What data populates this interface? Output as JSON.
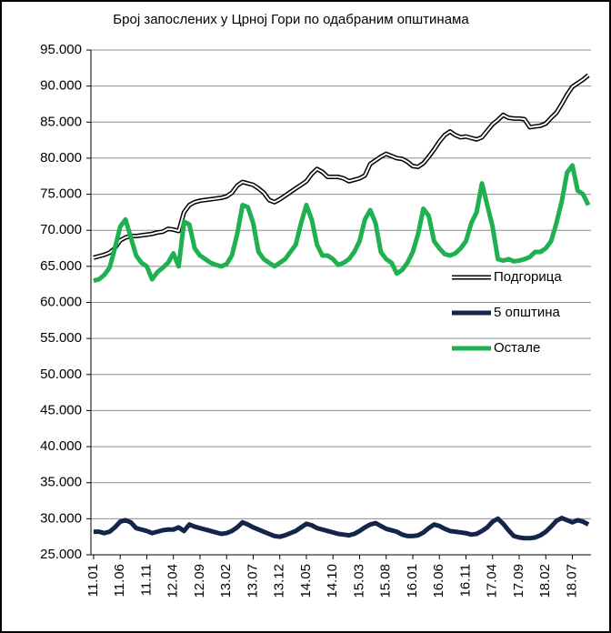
{
  "chart_data": {
    "type": "line",
    "title": "Број запослених у Црној Гори по одабраним општинама",
    "categories": [
      "11.01",
      null,
      null,
      null,
      null,
      "11.06",
      null,
      null,
      null,
      null,
      "11.11",
      null,
      null,
      null,
      null,
      "12.04",
      null,
      null,
      null,
      null,
      "12.09",
      null,
      null,
      null,
      null,
      "13.02",
      null,
      null,
      null,
      null,
      "13.07",
      null,
      null,
      null,
      null,
      "13.12",
      null,
      null,
      null,
      null,
      "14.05",
      null,
      null,
      null,
      null,
      "14.10",
      null,
      null,
      null,
      null,
      "15.03",
      null,
      null,
      null,
      null,
      "15.08",
      null,
      null,
      null,
      null,
      "16.01",
      null,
      null,
      null,
      null,
      "16.06",
      null,
      null,
      null,
      null,
      "16.11",
      null,
      null,
      null,
      null,
      "17.04",
      null,
      null,
      null,
      null,
      "17.09",
      null,
      null,
      null,
      null,
      "18.02",
      null,
      null,
      null,
      null,
      "18.07",
      null,
      null,
      null
    ],
    "series": [
      {
        "name": "Подгорица",
        "color": "#000000",
        "values": [
          66200,
          66400,
          66600,
          66900,
          67500,
          68600,
          69000,
          69200,
          69200,
          69300,
          69400,
          69500,
          69700,
          69800,
          70200,
          70100,
          69900,
          72500,
          73500,
          73900,
          74100,
          74200,
          74300,
          74400,
          74500,
          74700,
          75200,
          76200,
          76700,
          76500,
          76300,
          75800,
          75200,
          74200,
          73900,
          74300,
          74800,
          75300,
          75800,
          76300,
          76800,
          77800,
          78500,
          78100,
          77400,
          77400,
          77400,
          77200,
          76800,
          77000,
          77200,
          77600,
          79200,
          79700,
          80200,
          80600,
          80300,
          80000,
          79900,
          79500,
          78900,
          78800,
          79300,
          80200,
          81200,
          82300,
          83200,
          83700,
          83200,
          82900,
          83000,
          82800,
          82600,
          82900,
          83800,
          84700,
          85300,
          86000,
          85600,
          85500,
          85500,
          85400,
          84300,
          84400,
          84500,
          84800,
          85600,
          86300,
          87500,
          88800,
          89900,
          90400,
          90900,
          91500
        ]
      },
      {
        "name": "5 општина",
        "color": "#14254a",
        "values": [
          28200,
          28200,
          28000,
          28200,
          28800,
          29600,
          29800,
          29500,
          28700,
          28500,
          28300,
          28000,
          28200,
          28400,
          28500,
          28500,
          28800,
          28300,
          29200,
          28900,
          28700,
          28500,
          28300,
          28100,
          27900,
          28000,
          28300,
          28800,
          29500,
          29200,
          28800,
          28500,
          28200,
          27900,
          27600,
          27500,
          27700,
          28000,
          28300,
          28800,
          29300,
          29100,
          28700,
          28500,
          28300,
          28100,
          27900,
          27800,
          27700,
          27900,
          28300,
          28800,
          29200,
          29400,
          29000,
          28600,
          28400,
          28200,
          27800,
          27600,
          27600,
          27700,
          28100,
          28700,
          29200,
          29000,
          28600,
          28300,
          28200,
          28100,
          28000,
          27800,
          27900,
          28300,
          28800,
          29600,
          30000,
          29300,
          28400,
          27600,
          27400,
          27300,
          27300,
          27400,
          27700,
          28200,
          28900,
          29700,
          30100,
          29800,
          29500,
          29800,
          29600,
          29200
        ]
      },
      {
        "name": "Остале",
        "color": "#1fb04f",
        "values": [
          63000,
          63200,
          63800,
          64800,
          67500,
          70500,
          71500,
          69000,
          66500,
          65500,
          65000,
          63200,
          64200,
          64800,
          65500,
          66800,
          65000,
          71200,
          70800,
          67500,
          66500,
          66000,
          65500,
          65200,
          65000,
          65300,
          66500,
          69500,
          73500,
          73200,
          71000,
          67000,
          66000,
          65500,
          65000,
          65500,
          66000,
          67000,
          68000,
          71000,
          73500,
          71500,
          68000,
          66500,
          66500,
          66000,
          65200,
          65500,
          66000,
          67000,
          68500,
          71500,
          72800,
          71000,
          67000,
          66000,
          65500,
          64000,
          64500,
          65500,
          67000,
          69500,
          73000,
          72000,
          68500,
          67500,
          66700,
          66500,
          66800,
          67500,
          68500,
          71000,
          72500,
          76500,
          73500,
          70500,
          66000,
          65800,
          66000,
          65700,
          65800,
          66000,
          66300,
          67000,
          67000,
          67500,
          68500,
          71000,
          74000,
          78000,
          79000,
          75500,
          75000,
          73500
        ]
      }
    ],
    "ylim": [
      25000,
      95000
    ],
    "yticks": [
      {
        "value": 25000,
        "label": "25.000"
      },
      {
        "value": 30000,
        "label": "30.000"
      },
      {
        "value": 35000,
        "label": "35.000"
      },
      {
        "value": 40000,
        "label": "40.000"
      },
      {
        "value": 45000,
        "label": "45.000"
      },
      {
        "value": 50000,
        "label": "50.000"
      },
      {
        "value": 55000,
        "label": "55.000"
      },
      {
        "value": 60000,
        "label": "60.000"
      },
      {
        "value": 65000,
        "label": "65.000"
      },
      {
        "value": 70000,
        "label": "70.000"
      },
      {
        "value": 75000,
        "label": "75.000"
      },
      {
        "value": 80000,
        "label": "80.000"
      },
      {
        "value": 85000,
        "label": "85.000"
      },
      {
        "value": 90000,
        "label": "90.000"
      },
      {
        "value": 95000,
        "label": "95.000"
      }
    ],
    "grid": true
  }
}
